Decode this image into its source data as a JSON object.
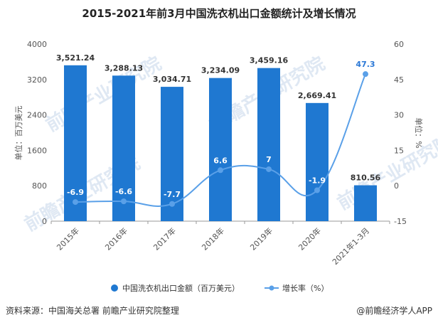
{
  "chart_data": {
    "type": "bar",
    "title": "2015-2021年前3月中国洗衣机出口金额统计及增长情况",
    "categories": [
      "2015年",
      "2016年",
      "2017年",
      "2018年",
      "2019年",
      "2020年",
      "2021年1-3月"
    ],
    "series": [
      {
        "name": "中国洗衣机出口金额（百万美元）",
        "type": "bar",
        "axis": "left",
        "color": "#1f78d1",
        "values": [
          3521.24,
          3288.13,
          3034.71,
          3234.09,
          3459.16,
          2669.41,
          810.56
        ],
        "labels": [
          "3,521.24",
          "3,288.13",
          "3,034.71",
          "3,234.09",
          "3,459.16",
          "2,669.41",
          "810.56"
        ]
      },
      {
        "name": "增长率（%）",
        "type": "line",
        "axis": "right",
        "color": "#5aa0e8",
        "values": [
          -6.9,
          -6.6,
          -7.7,
          6.6,
          7,
          -1.9,
          47.3
        ],
        "labels": [
          "-6.9",
          "-6.6",
          "-7.7",
          "6.6",
          "7",
          "-1.9",
          "47.3"
        ]
      }
    ],
    "ylabel": "单位：百万美元",
    "y2label": "单位：%",
    "ylim": [
      0,
      4000
    ],
    "yticks": [
      "0",
      "800",
      "1600",
      "2400",
      "3200",
      "4000"
    ],
    "y2lim": [
      -15,
      60
    ],
    "y2ticks": [
      "-15",
      "0",
      "15",
      "30",
      "45",
      "60"
    ],
    "legend_position": "bottom",
    "grid": false
  },
  "source": "资料来源：中国海关总署 前瞻产业研究院整理",
  "brand": "@前瞻经济学人APP",
  "watermark": "前瞻产业研究院"
}
